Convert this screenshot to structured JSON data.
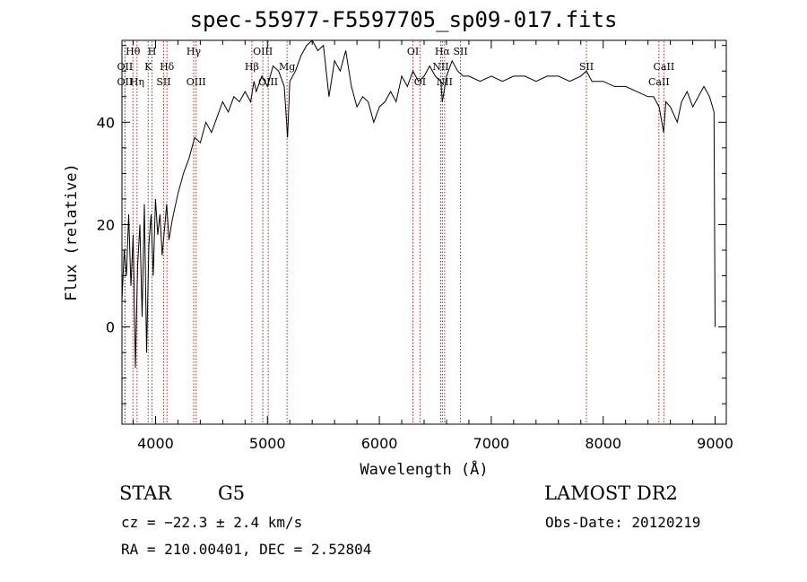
{
  "header": {
    "title": "spec-55977-F5597705_sp09-017.fits"
  },
  "info": {
    "class": "STAR",
    "subclass": "G5",
    "survey": "LAMOST DR2",
    "cz": "cz = −22.3 ± 2.4 km/s",
    "obs_date": "Obs-Date: 20120219",
    "radec": "RA = 210.00401, DEC =    2.52804"
  },
  "chart_data": {
    "type": "line",
    "title": "spec-55977-F5597705_sp09-017.fits",
    "xlabel": "Wavelength (Å)",
    "ylabel": "Flux (relative)",
    "xlim": [
      3700,
      9100
    ],
    "ylim": [
      -19,
      56
    ],
    "xticks": [
      4000,
      5000,
      6000,
      7000,
      8000,
      9000
    ],
    "yticks": [
      0,
      20,
      40
    ],
    "grid": false,
    "colors": {
      "spectrum": "#000000",
      "line_markers": "#b22222"
    },
    "spectrum": {
      "x": [
        3700,
        3720,
        3740,
        3760,
        3780,
        3800,
        3820,
        3840,
        3860,
        3880,
        3900,
        3920,
        3940,
        3960,
        3980,
        4000,
        4020,
        4040,
        4060,
        4080,
        4100,
        4120,
        4150,
        4200,
        4250,
        4300,
        4350,
        4400,
        4450,
        4500,
        4550,
        4600,
        4650,
        4700,
        4750,
        4800,
        4850,
        4880,
        4900,
        4950,
        5000,
        5050,
        5100,
        5150,
        5180,
        5200,
        5250,
        5300,
        5350,
        5400,
        5450,
        5500,
        5550,
        5600,
        5650,
        5700,
        5750,
        5800,
        5850,
        5900,
        5950,
        6000,
        6050,
        6100,
        6150,
        6200,
        6250,
        6300,
        6350,
        6400,
        6450,
        6500,
        6550,
        6563,
        6600,
        6650,
        6700,
        6750,
        6800,
        6900,
        7000,
        7100,
        7200,
        7300,
        7400,
        7500,
        7600,
        7700,
        7800,
        7850,
        7900,
        8000,
        8100,
        8200,
        8300,
        8400,
        8450,
        8500,
        8540,
        8560,
        8600,
        8662,
        8700,
        8750,
        8800,
        8850,
        8900,
        8950,
        8990,
        9000
      ],
      "y": [
        5,
        15,
        10,
        22,
        8,
        18,
        -8,
        12,
        20,
        2,
        24,
        -5,
        16,
        22,
        10,
        25,
        18,
        22,
        14,
        19,
        24,
        17,
        21,
        26,
        30,
        33,
        37,
        36,
        40,
        38,
        41,
        44,
        42,
        45,
        44,
        46,
        44,
        48,
        46,
        49,
        47,
        51,
        50,
        47,
        37,
        48,
        50,
        53,
        55,
        56,
        54,
        55,
        45,
        52,
        50,
        54,
        47,
        43,
        45,
        44,
        40,
        43,
        44,
        46,
        44,
        49,
        47,
        50,
        48,
        49,
        51,
        49,
        48,
        44,
        49,
        52,
        50,
        49,
        49,
        48,
        49,
        48,
        49,
        49,
        48,
        49,
        49,
        48,
        49,
        50,
        48,
        48,
        47,
        47,
        46,
        45,
        45,
        43,
        38,
        44,
        43,
        40,
        44,
        46,
        43,
        45,
        47,
        45,
        42,
        0
      ]
    },
    "line_markers": [
      {
        "label": "Hθ",
        "row": 0,
        "x": 3798
      },
      {
        "label": "OII",
        "row": 1,
        "x": 3727
      },
      {
        "label": "OII",
        "row": 2,
        "x": 3727
      },
      {
        "label": "Hη",
        "row": 2,
        "x": 3835
      },
      {
        "label": "H",
        "row": 0,
        "x": 3969
      },
      {
        "label": "K",
        "row": 1,
        "x": 3934
      },
      {
        "label": "Hδ",
        "row": 1,
        "x": 4102
      },
      {
        "label": "SII",
        "row": 2,
        "x": 4072
      },
      {
        "label": "Hγ",
        "row": 0,
        "x": 4341
      },
      {
        "label": "OIII",
        "row": 2,
        "x": 4363
      },
      {
        "label": "OIII",
        "row": 0,
        "x": 4959
      },
      {
        "label": "Hβ",
        "row": 1,
        "x": 4861
      },
      {
        "label": "Mg",
        "row": 1,
        "x": 5175
      },
      {
        "label": "OIII",
        "row": 2,
        "x": 5007
      },
      {
        "label": "OI",
        "row": 0,
        "x": 6300
      },
      {
        "label": "OI",
        "row": 2,
        "x": 6363
      },
      {
        "label": "Hα",
        "row": 0,
        "x": 6563
      },
      {
        "label": "SII",
        "row": 0,
        "x": 6725
      },
      {
        "label": "NII",
        "row": 1,
        "x": 6548
      },
      {
        "label": "NII",
        "row": 2,
        "x": 6583
      },
      {
        "label": "SII",
        "row": 1,
        "x": 7850
      },
      {
        "label": "CaII",
        "row": 1,
        "x": 8542
      },
      {
        "label": "CaII",
        "row": 2,
        "x": 8498
      }
    ]
  }
}
